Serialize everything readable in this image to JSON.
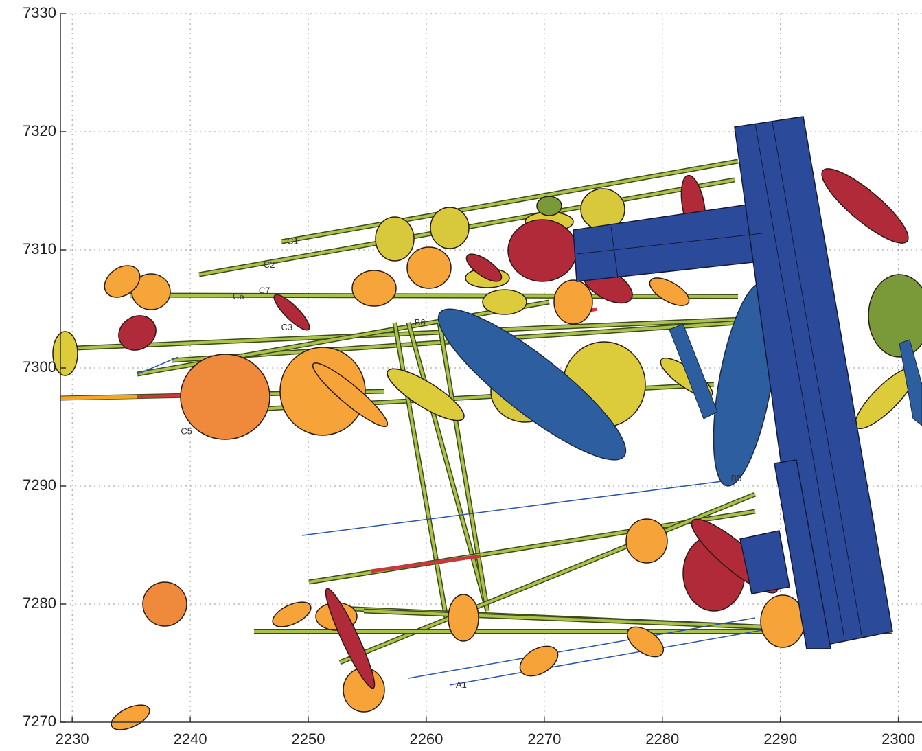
{
  "chart_data": {
    "type": "scatter",
    "xlim": [
      2229,
      2302
    ],
    "ylim": [
      7270,
      7330
    ],
    "xticks": [
      2230,
      2240,
      2250,
      2260,
      2270,
      2280,
      2290,
      2300
    ],
    "yticks": [
      7270,
      7280,
      7290,
      7300,
      7310,
      7320,
      7330
    ],
    "grid": true,
    "annotations": [
      {
        "text": "C1",
        "x": 2248.2,
        "y": 7310.7
      },
      {
        "text": "C2",
        "x": 2246.2,
        "y": 7308.7
      },
      {
        "text": "C6",
        "x": 2243.6,
        "y": 7306.0
      },
      {
        "text": "C7",
        "x": 2245.8,
        "y": 7306.5
      },
      {
        "text": "C3",
        "x": 2247.7,
        "y": 7303.4
      },
      {
        "text": "C5",
        "x": 2239.2,
        "y": 7294.6
      },
      {
        "text": "B6",
        "x": 2259.0,
        "y": 7303.8
      },
      {
        "text": "A1",
        "x": 2262.5,
        "y": 7273.1
      },
      {
        "text": "B5",
        "x": 2285.8,
        "y": 7290.6
      }
    ]
  }
}
